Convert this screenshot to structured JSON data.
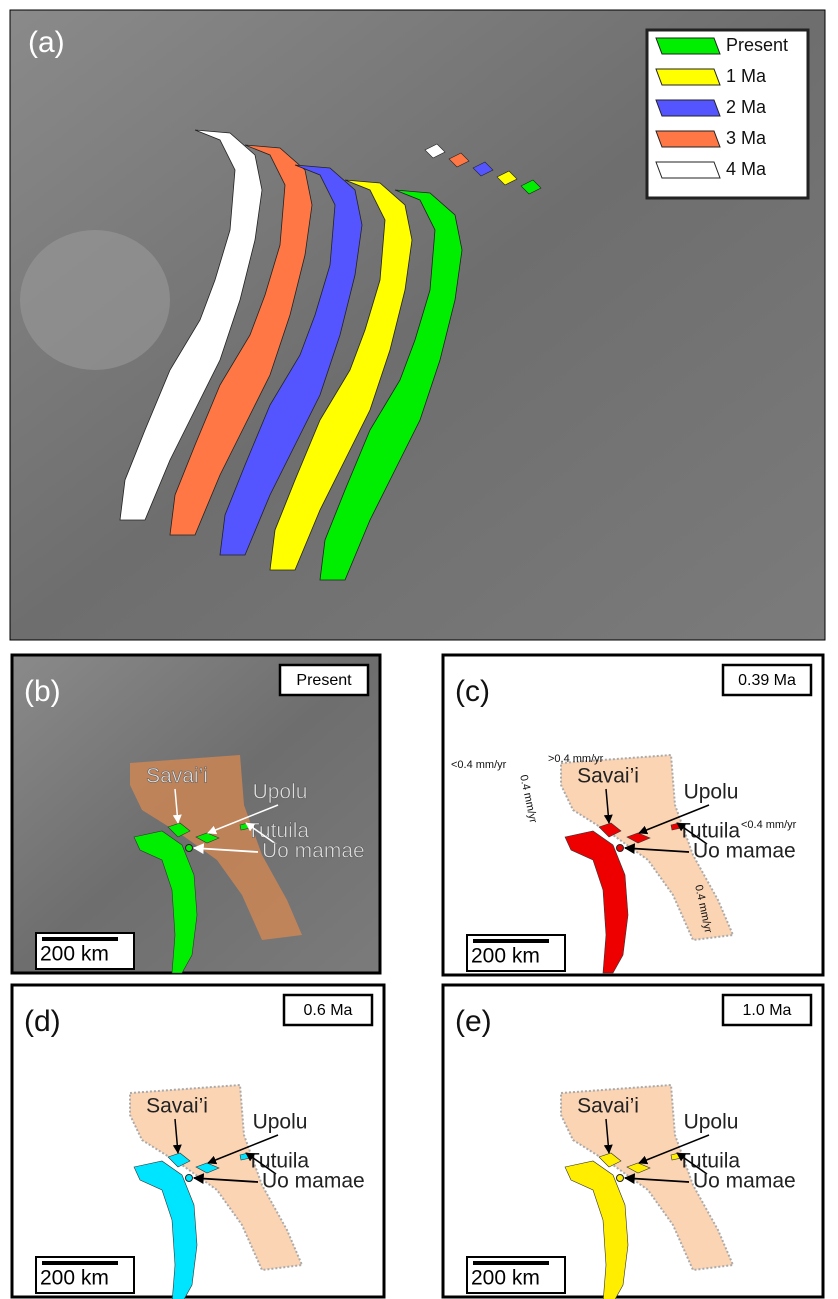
{
  "panels": [
    {
      "label": "(a)",
      "legend": [
        {
          "label": "Present",
          "color": "#00ee00"
        },
        {
          "label": "1 Ma",
          "color": "#ffff00"
        },
        {
          "label": "2 Ma",
          "color": "#5555ff"
        },
        {
          "label": "3 Ma",
          "color": "#ff7744"
        },
        {
          "label": "4 Ma",
          "color": "#ffffff"
        }
      ]
    },
    {
      "label": "(b)",
      "badge": "Present",
      "color": "#00ee00",
      "places": [
        "Savai’i",
        "Upolu",
        "Tutuila",
        "Uo mamae"
      ],
      "scale": "200 km"
    },
    {
      "label": "(c)",
      "badge": "0.39 Ma",
      "color": "#ee0000",
      "places": [
        "Savai’i",
        "Upolu",
        "Tutuila",
        "Uo mamae"
      ],
      "rates": [
        "<0.4 mm/yr",
        ">0.4 mm/yr",
        "0.4 mm/yr",
        "<0.4 mm/yr",
        "0.4 mm/yr"
      ],
      "scale": "200 km"
    },
    {
      "label": "(d)",
      "badge": "0.6 Ma",
      "color": "#00e5ff",
      "places": [
        "Savai’i",
        "Upolu",
        "Tutuila",
        "Uo mamae"
      ],
      "scale": "200 km"
    },
    {
      "label": "(e)",
      "badge": "1.0 Ma",
      "color": "#ffee00",
      "places": [
        "Savai’i",
        "Upolu",
        "Tutuila",
        "Uo mamae"
      ],
      "scale": "200 km"
    }
  ]
}
